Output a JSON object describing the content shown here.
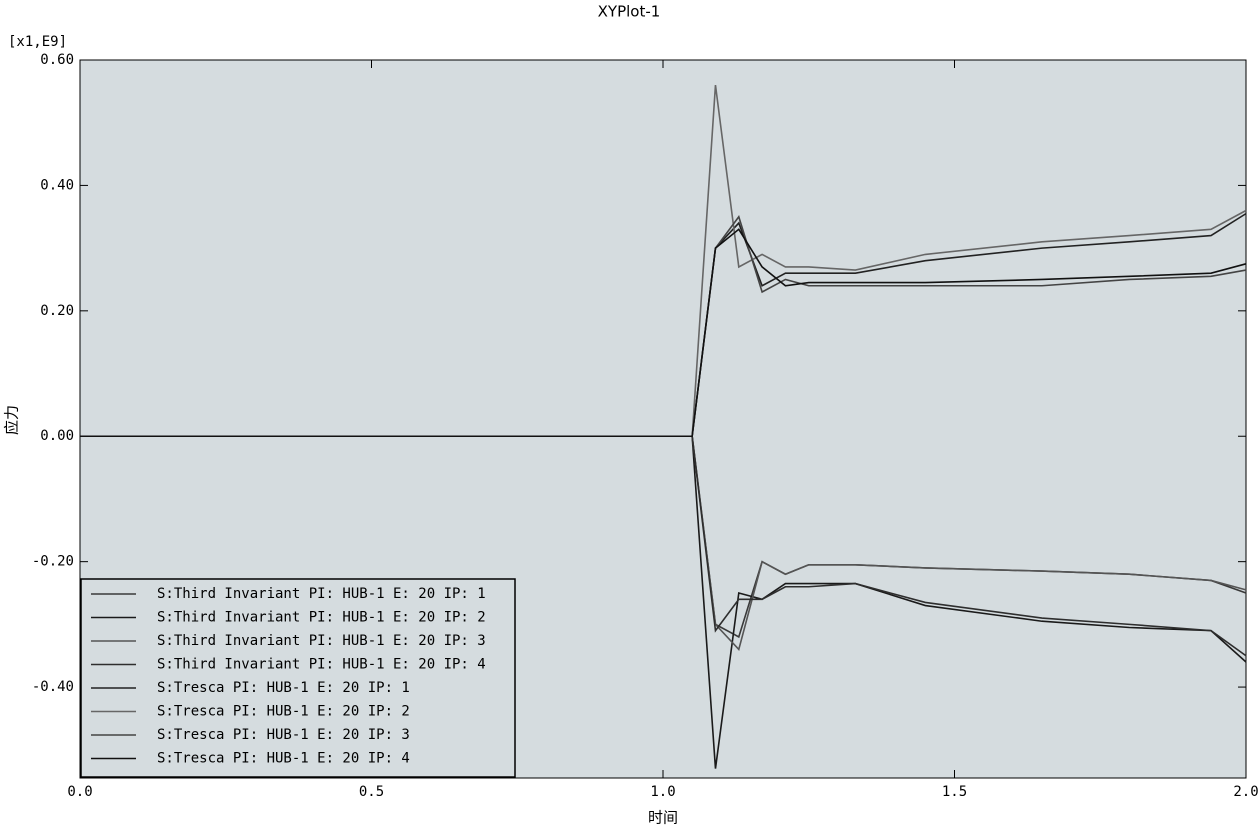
{
  "chart_data": {
    "type": "line",
    "title": "XYPlot-1",
    "y_multiplier": "[x1,E9]",
    "xlabel": "时间",
    "ylabel": "应力",
    "x": [
      0,
      1.05,
      1.09,
      1.13,
      1.17,
      1.21,
      1.25,
      1.33,
      1.45,
      1.65,
      1.8,
      1.94,
      2.0
    ],
    "series": [
      {
        "name": "S:Third Invariant PI: HUB-1 E: 20 IP: 1",
        "color": "#3a3a3a",
        "values": [
          0,
          0,
          -0.3,
          -0.32,
          -0.2,
          -0.22,
          -0.205,
          -0.205,
          -0.21,
          -0.215,
          -0.22,
          -0.23,
          -0.25
        ]
      },
      {
        "name": "S:Third Invariant PI: HUB-1 E: 20 IP: 2",
        "color": "#1a1a1a",
        "values": [
          0,
          0,
          -0.53,
          -0.25,
          -0.26,
          -0.235,
          -0.235,
          -0.235,
          -0.27,
          -0.295,
          -0.305,
          -0.31,
          -0.36
        ]
      },
      {
        "name": "S:Third Invariant PI: HUB-1 E: 20 IP: 3",
        "color": "#555555",
        "values": [
          0,
          0,
          -0.3,
          -0.34,
          -0.2,
          -0.22,
          -0.205,
          -0.205,
          -0.21,
          -0.215,
          -0.22,
          -0.23,
          -0.245
        ]
      },
      {
        "name": "S:Third Invariant PI: HUB-1 E: 20 IP: 4",
        "color": "#2e2e2e",
        "values": [
          0,
          0,
          -0.31,
          -0.26,
          -0.26,
          -0.24,
          -0.24,
          -0.235,
          -0.265,
          -0.29,
          -0.3,
          -0.31,
          -0.35
        ]
      },
      {
        "name": "S:Tresca PI: HUB-1 E: 20 IP: 1",
        "color": "#222222",
        "values": [
          0,
          0,
          0.3,
          0.34,
          0.24,
          0.26,
          0.26,
          0.26,
          0.28,
          0.3,
          0.31,
          0.32,
          0.355
        ]
      },
      {
        "name": "S:Tresca PI: HUB-1 E: 20 IP: 2",
        "color": "#666666",
        "values": [
          0,
          0,
          0.56,
          0.27,
          0.29,
          0.27,
          0.27,
          0.265,
          0.29,
          0.31,
          0.32,
          0.33,
          0.36
        ]
      },
      {
        "name": "S:Tresca PI: HUB-1 E: 20 IP: 3",
        "color": "#444444",
        "values": [
          0,
          0,
          0.3,
          0.35,
          0.23,
          0.25,
          0.24,
          0.24,
          0.24,
          0.24,
          0.25,
          0.255,
          0.265
        ]
      },
      {
        "name": "S:Tresca PI: HUB-1 E: 20 IP: 4",
        "color": "#111111",
        "values": [
          0,
          0,
          0.3,
          0.33,
          0.27,
          0.24,
          0.245,
          0.245,
          0.245,
          0.25,
          0.255,
          0.26,
          0.275
        ]
      }
    ],
    "xlim": [
      0,
      2.0
    ],
    "ylim": [
      -0.545,
      0.6
    ],
    "xticks": [
      {
        "value": 0,
        "label": "0.0"
      },
      {
        "value": 0.5,
        "label": "0.5"
      },
      {
        "value": 1.0,
        "label": "1.0"
      },
      {
        "value": 1.5,
        "label": "1.5"
      },
      {
        "value": 2.0,
        "label": "2.0"
      }
    ],
    "yticks": [
      {
        "value": -0.4,
        "label": "-0.40"
      },
      {
        "value": -0.2,
        "label": "-0.20"
      },
      {
        "value": 0,
        "label": "0.00"
      },
      {
        "value": 0.2,
        "label": "0.20"
      },
      {
        "value": 0.4,
        "label": "0.40"
      },
      {
        "value": 0.6,
        "label": "0.60"
      }
    ],
    "legend": "lower left",
    "background": "#d5dcdf"
  }
}
